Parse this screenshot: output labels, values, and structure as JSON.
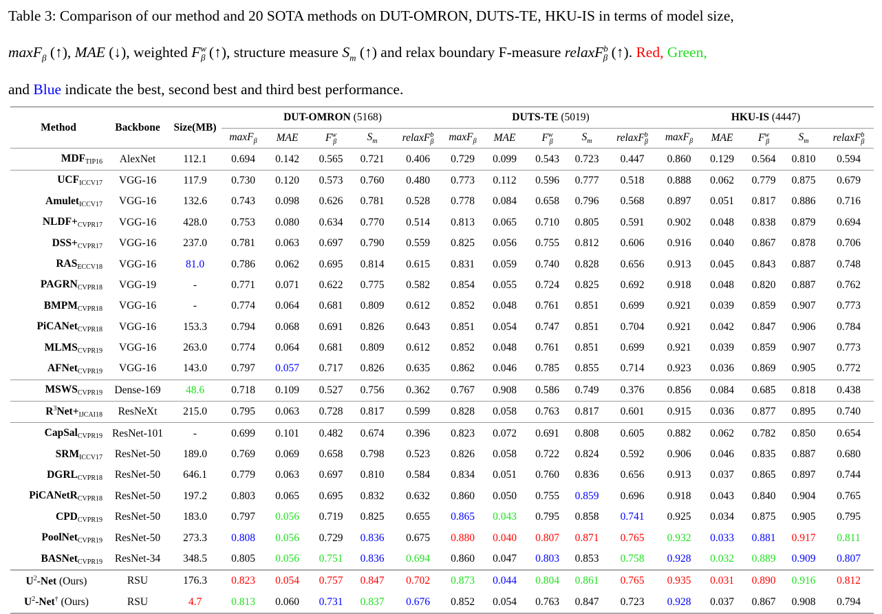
{
  "caption": {
    "line1": "Table 3: Comparison of our method and 20 SOTA methods on DUT-OMRON, DUTS-TE, HKU-IS in terms of model size,",
    "l2_a": "max",
    "l2_F": "F",
    "l2_beta": "β",
    "l2_b": " (↑), ",
    "l2_mae": "MAE",
    "l2_c": " (↓), weighted ",
    "l2_fw": "F",
    "l2_w": "w",
    "l2_d": " (↑), structure measure ",
    "l2_s": "S",
    "l2_m": "m",
    "l2_e": " (↑) and relax boundary F-measure ",
    "l2_relax": "relaxF",
    "l2_bsup": "b",
    "l2_f": " (↑). ",
    "red_word": "Red,",
    "green_word": "Green,",
    "l3_and": "and ",
    "blue_word": "Blue",
    "l3_rest": " indicate the best, second best and third best performance."
  },
  "colors": {
    "r": "#ff0000",
    "g": "#1ee01e",
    "b": "#0000ff"
  },
  "header": {
    "method": "Method",
    "backbone": "Backbone",
    "size": "Size(MB)",
    "datasets": [
      {
        "name": "DUT-OMRON",
        "count": "(5168)"
      },
      {
        "name": "DUTS-TE",
        "count": "(5019)"
      },
      {
        "name": "HKU-IS",
        "count": "(4447)"
      }
    ],
    "metrics": [
      {
        "main": "maxF",
        "sub": "β",
        "sup": ""
      },
      {
        "main": "MAE",
        "sub": "",
        "sup": ""
      },
      {
        "main": "F",
        "sub": "β",
        "sup": "w"
      },
      {
        "main": "S",
        "sub": "m",
        "sup": ""
      },
      {
        "main": "relaxF",
        "sub": "β",
        "sup": "b"
      }
    ]
  },
  "rows": [
    {
      "name": "MDF",
      "sub": "TIP16",
      "backbone": "AlexNet",
      "size": "112.1",
      "values": [
        "0.694",
        "0.142",
        "0.565",
        "0.721",
        "0.406",
        "0.729",
        "0.099",
        "0.543",
        "0.723",
        "0.447",
        "0.860",
        "0.129",
        "0.564",
        "0.810",
        "0.594"
      ],
      "sep": 1
    },
    {
      "name": "UCF",
      "sub": "ICCV17",
      "backbone": "VGG-16",
      "size": "117.9",
      "values": [
        "0.730",
        "0.120",
        "0.573",
        "0.760",
        "0.480",
        "0.773",
        "0.112",
        "0.596",
        "0.777",
        "0.518",
        "0.888",
        "0.062",
        "0.779",
        "0.875",
        "0.679"
      ]
    },
    {
      "name": "Amulet",
      "sub": "ICCV17",
      "backbone": "VGG-16",
      "size": "132.6",
      "values": [
        "0.743",
        "0.098",
        "0.626",
        "0.781",
        "0.528",
        "0.778",
        "0.084",
        "0.658",
        "0.796",
        "0.568",
        "0.897",
        "0.051",
        "0.817",
        "0.886",
        "0.716"
      ]
    },
    {
      "name": "NLDF+",
      "sub": "CVPR17",
      "backbone": "VGG-16",
      "size": "428.0",
      "values": [
        "0.753",
        "0.080",
        "0.634",
        "0.770",
        "0.514",
        "0.813",
        "0.065",
        "0.710",
        "0.805",
        "0.591",
        "0.902",
        "0.048",
        "0.838",
        "0.879",
        "0.694"
      ]
    },
    {
      "name": "DSS+",
      "sub": "CVPR17",
      "backbone": "VGG-16",
      "size": "237.0",
      "values": [
        "0.781",
        "0.063",
        "0.697",
        "0.790",
        "0.559",
        "0.825",
        "0.056",
        "0.755",
        "0.812",
        "0.606",
        "0.916",
        "0.040",
        "0.867",
        "0.878",
        "0.706"
      ]
    },
    {
      "name": "RAS",
      "sub": "ECCV18",
      "backbone": "VGG-16",
      "size": "81.0",
      "size_color": "b",
      "values": [
        "0.786",
        "0.062",
        "0.695",
        "0.814",
        "0.615",
        "0.831",
        "0.059",
        "0.740",
        "0.828",
        "0.656",
        "0.913",
        "0.045",
        "0.843",
        "0.887",
        "0.748"
      ]
    },
    {
      "name": "PAGRN",
      "sub": "CVPR18",
      "backbone": "VGG-19",
      "size": "-",
      "values": [
        "0.771",
        "0.071",
        "0.622",
        "0.775",
        "0.582",
        "0.854",
        "0.055",
        "0.724",
        "0.825",
        "0.692",
        "0.918",
        "0.048",
        "0.820",
        "0.887",
        "0.762"
      ]
    },
    {
      "name": "BMPM",
      "sub": "CVPR18",
      "backbone": "VGG-16",
      "size": "-",
      "values": [
        "0.774",
        "0.064",
        "0.681",
        "0.809",
        "0.612",
        "0.852",
        "0.048",
        "0.761",
        "0.851",
        "0.699",
        "0.921",
        "0.039",
        "0.859",
        "0.907",
        "0.773"
      ]
    },
    {
      "name": "PiCANet",
      "sub": "CVPR18",
      "backbone": "VGG-16",
      "size": "153.3",
      "values": [
        "0.794",
        "0.068",
        "0.691",
        "0.826",
        "0.643",
        "0.851",
        "0.054",
        "0.747",
        "0.851",
        "0.704",
        "0.921",
        "0.042",
        "0.847",
        "0.906",
        "0.784"
      ]
    },
    {
      "name": "MLMS",
      "sub": "CVPR19",
      "backbone": "VGG-16",
      "size": "263.0",
      "values": [
        "0.774",
        "0.064",
        "0.681",
        "0.809",
        "0.612",
        "0.852",
        "0.048",
        "0.761",
        "0.851",
        "0.699",
        "0.921",
        "0.039",
        "0.859",
        "0.907",
        "0.773"
      ]
    },
    {
      "name": "AFNet",
      "sub": "CVPR19",
      "backbone": "VGG-16",
      "size": "143.0",
      "values": [
        "0.797",
        "0.057",
        "0.717",
        "0.826",
        "0.635",
        "0.862",
        "0.046",
        "0.785",
        "0.855",
        "0.714",
        "0.923",
        "0.036",
        "0.869",
        "0.905",
        "0.772"
      ],
      "colors": {
        "1": "b"
      },
      "sep": 1
    },
    {
      "name": "MSWS",
      "sub": "CVPR19",
      "backbone": "Dense-169",
      "size": "48.6",
      "size_color": "g",
      "values": [
        "0.718",
        "0.109",
        "0.527",
        "0.756",
        "0.362",
        "0.767",
        "0.908",
        "0.586",
        "0.749",
        "0.376",
        "0.856",
        "0.084",
        "0.685",
        "0.818",
        "0.438"
      ],
      "sep": 1
    },
    {
      "name": "R",
      "sup": "3",
      "name2": "Net+",
      "sub": "IJCAI18",
      "backbone": "ResNeXt",
      "size": "215.0",
      "values": [
        "0.795",
        "0.063",
        "0.728",
        "0.817",
        "0.599",
        "0.828",
        "0.058",
        "0.763",
        "0.817",
        "0.601",
        "0.915",
        "0.036",
        "0.877",
        "0.895",
        "0.740"
      ],
      "sep": 1
    },
    {
      "name": "CapSal",
      "sub": "CVPR19",
      "backbone": "ResNet-101",
      "size": "-",
      "values": [
        "0.699",
        "0.101",
        "0.482",
        "0.674",
        "0.396",
        "0.823",
        "0.072",
        "0.691",
        "0.808",
        "0.605",
        "0.882",
        "0.062",
        "0.782",
        "0.850",
        "0.654"
      ]
    },
    {
      "name": "SRM",
      "sub": "ICCV17",
      "backbone": "ResNet-50",
      "size": "189.0",
      "values": [
        "0.769",
        "0.069",
        "0.658",
        "0.798",
        "0.523",
        "0.826",
        "0.058",
        "0.722",
        "0.824",
        "0.592",
        "0.906",
        "0.046",
        "0.835",
        "0.887",
        "0.680"
      ]
    },
    {
      "name": "DGRL",
      "sub": "CVPR18",
      "backbone": "ResNet-50",
      "size": "646.1",
      "values": [
        "0.779",
        "0.063",
        "0.697",
        "0.810",
        "0.584",
        "0.834",
        "0.051",
        "0.760",
        "0.836",
        "0.656",
        "0.913",
        "0.037",
        "0.865",
        "0.897",
        "0.744"
      ]
    },
    {
      "name": "PiCANetR",
      "sub": "CVPR18",
      "backbone": "ResNet-50",
      "size": "197.2",
      "values": [
        "0.803",
        "0.065",
        "0.695",
        "0.832",
        "0.632",
        "0.860",
        "0.050",
        "0.755",
        "0.859",
        "0.696",
        "0.918",
        "0.043",
        "0.840",
        "0.904",
        "0.765"
      ],
      "colors": {
        "8": "b"
      }
    },
    {
      "name": "CPD",
      "sub": "CVPR19",
      "backbone": "ResNet-50",
      "size": "183.0",
      "values": [
        "0.797",
        "0.056",
        "0.719",
        "0.825",
        "0.655",
        "0.865",
        "0.043",
        "0.795",
        "0.858",
        "0.741",
        "0.925",
        "0.034",
        "0.875",
        "0.905",
        "0.795"
      ],
      "colors": {
        "1": "g",
        "5": "b",
        "6": "g",
        "9": "b"
      }
    },
    {
      "name": "PoolNet",
      "sub": "CVPR19",
      "backbone": "ResNet-50",
      "size": "273.3",
      "values": [
        "0.808",
        "0.056",
        "0.729",
        "0.836",
        "0.675",
        "0.880",
        "0.040",
        "0.807",
        "0.871",
        "0.765",
        "0.932",
        "0.033",
        "0.881",
        "0.917",
        "0.811"
      ],
      "colors": {
        "0": "b",
        "1": "g",
        "3": "b",
        "5": "r",
        "6": "r",
        "7": "r",
        "8": "r",
        "9": "r",
        "10": "g",
        "11": "b",
        "12": "b",
        "13": "r",
        "14": "g"
      }
    },
    {
      "name": "BASNet",
      "sub": "CVPR19",
      "backbone": "ResNet-34",
      "size": "348.5",
      "values": [
        "0.805",
        "0.056",
        "0.751",
        "0.836",
        "0.694",
        "0.860",
        "0.047",
        "0.803",
        "0.853",
        "0.758",
        "0.928",
        "0.032",
        "0.889",
        "0.909",
        "0.807"
      ],
      "colors": {
        "1": "g",
        "2": "g",
        "3": "b",
        "4": "g",
        "7": "b",
        "9": "g",
        "10": "b",
        "11": "g",
        "12": "g",
        "13": "b",
        "14": "b"
      },
      "sep": 2
    },
    {
      "name": "U",
      "sup": "2",
      "name2": "-Net",
      "suffix": " (Ours)",
      "ours": 1,
      "backbone": "RSU",
      "size": "176.3",
      "values": [
        "0.823",
        "0.054",
        "0.757",
        "0.847",
        "0.702",
        "0.873",
        "0.044",
        "0.804",
        "0.861",
        "0.765",
        "0.935",
        "0.031",
        "0.890",
        "0.916",
        "0.812"
      ],
      "colors": {
        "0": "r",
        "1": "r",
        "2": "r",
        "3": "r",
        "4": "r",
        "5": "g",
        "6": "b",
        "7": "g",
        "8": "g",
        "9": "r",
        "10": "r",
        "11": "r",
        "12": "r",
        "13": "g",
        "14": "r"
      }
    },
    {
      "name": "U",
      "sup": "2",
      "name2": "-Net",
      "sup2": "†",
      "suffix": " (Ours)",
      "ours": 1,
      "backbone": "RSU",
      "size": "4.7",
      "size_color": "r",
      "values": [
        "0.813",
        "0.060",
        "0.731",
        "0.837",
        "0.676",
        "0.852",
        "0.054",
        "0.763",
        "0.847",
        "0.723",
        "0.928",
        "0.037",
        "0.867",
        "0.908",
        "0.794"
      ],
      "colors": {
        "0": "g",
        "2": "b",
        "3": "g",
        "4": "b",
        "10": "b"
      },
      "last": 1
    }
  ]
}
